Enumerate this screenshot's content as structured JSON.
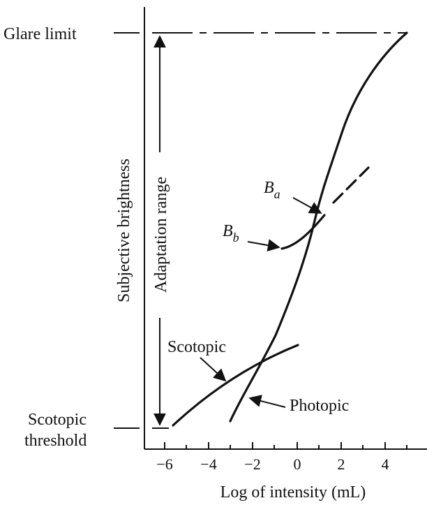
{
  "diagram": {
    "labels": {
      "glare_limit": "Glare limit",
      "scotopic_threshold_line1": "Scotopic",
      "scotopic_threshold_line2": "threshold",
      "y_axis": "Subjective brightness",
      "adaptation_range": "Adaptation range",
      "ba_main": "B",
      "ba_sub": "a",
      "bb_main": "B",
      "bb_sub": "b",
      "scotopic": "Scotopic",
      "photopic": "Photopic",
      "x_axis": "Log of intensity (mL)"
    },
    "x_ticks": [
      "−6",
      "−4",
      "−2",
      "0",
      "2",
      "4"
    ],
    "x_tick_values": [
      -6,
      -4,
      -2,
      0,
      2,
      4
    ]
  }
}
